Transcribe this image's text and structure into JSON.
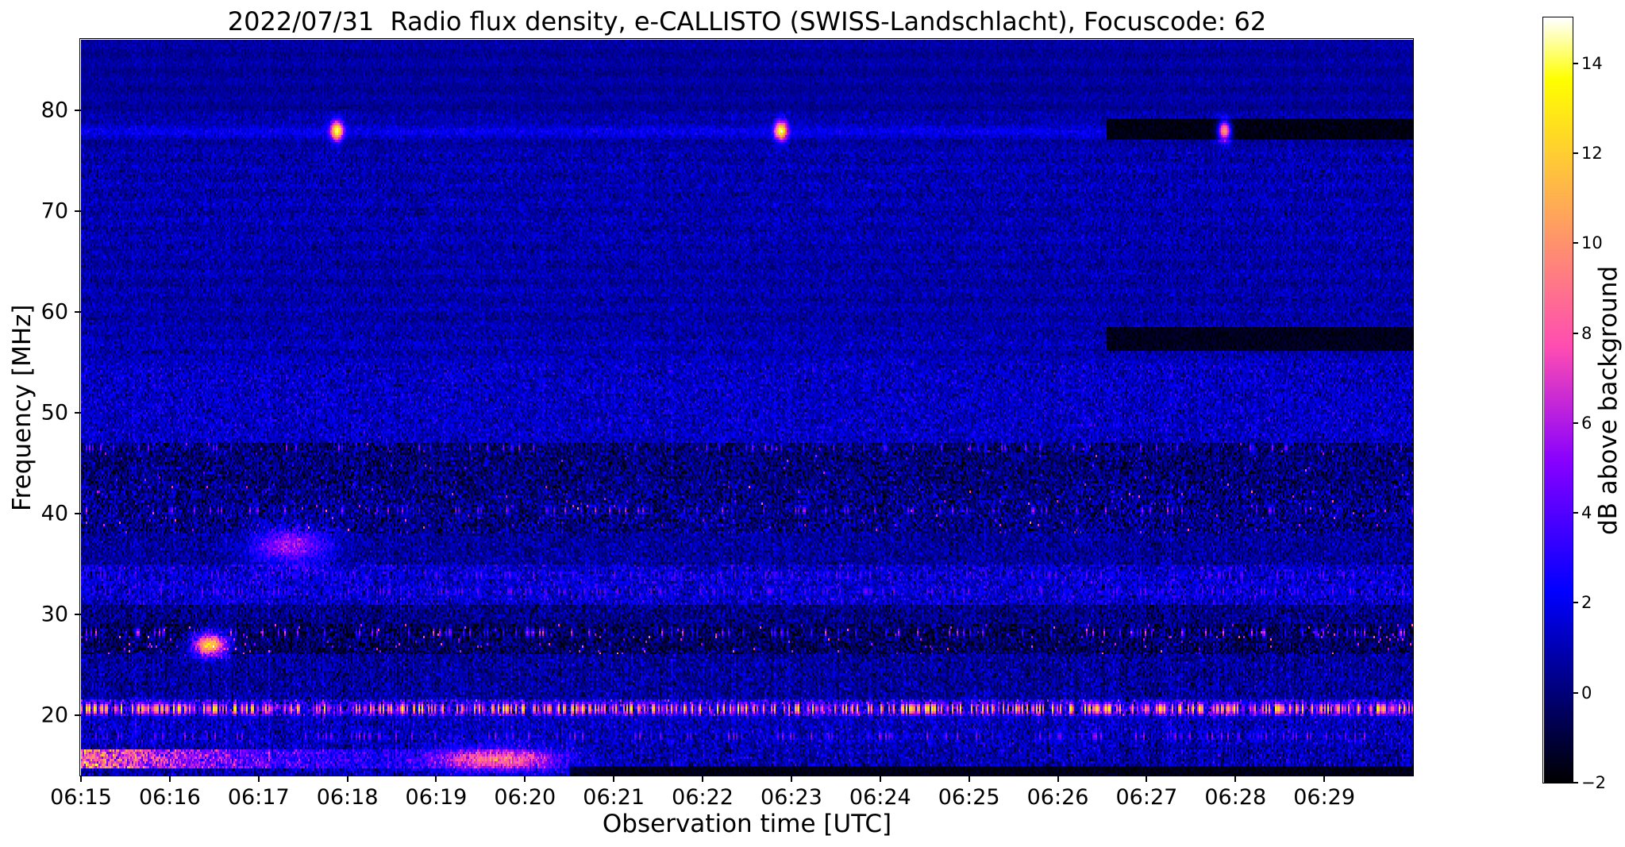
{
  "chart_data": {
    "type": "heatmap",
    "title": "2022/07/31  Radio flux density, e-CALLISTO (SWISS-Landschlacht), Focuscode: 62",
    "xlabel": "Observation time [UTC]",
    "ylabel": "Frequency [MHz]",
    "x_ticks": [
      "06:15",
      "06:16",
      "06:17",
      "06:18",
      "06:19",
      "06:20",
      "06:21",
      "06:22",
      "06:23",
      "06:24",
      "06:25",
      "06:26",
      "06:27",
      "06:28",
      "06:29"
    ],
    "x_start_minutes": 0,
    "x_end_minutes": 15,
    "ylim": [
      14,
      87
    ],
    "y_ticks": [
      20,
      30,
      40,
      50,
      60,
      70,
      80
    ],
    "grid": false,
    "legend": "none",
    "colorbar": {
      "label": "dB above background",
      "vmin": -2,
      "vmax": 15,
      "ticks": [
        -2,
        0,
        2,
        4,
        6,
        8,
        10,
        12,
        14
      ],
      "colormap": "gnuplot2"
    },
    "noise_seed": 20220731,
    "bands": [
      {
        "f0": 14,
        "f1": 17,
        "mean": 0.9,
        "sd": 1.0,
        "streak": 0.8
      },
      {
        "f0": 17,
        "f1": 19.8,
        "mean": 1.1,
        "sd": 1.0,
        "streak": 0.8
      },
      {
        "f0": 19.8,
        "f1": 21.6,
        "mean": 2.2,
        "sd": 1.8,
        "streak": 1.0
      },
      {
        "f0": 21.6,
        "f1": 26,
        "mean": 0.6,
        "sd": 0.9,
        "streak": 0.7
      },
      {
        "f0": 26,
        "f1": 29,
        "mean": -0.4,
        "sd": 1.1,
        "streak": 0.5,
        "spot_p": 0.02,
        "spot_v": 6
      },
      {
        "f0": 29,
        "f1": 31,
        "mean": 0.2,
        "sd": 0.9,
        "streak": 0.5
      },
      {
        "f0": 31,
        "f1": 35,
        "mean": 1.5,
        "sd": 1.1,
        "streak": 0.5
      },
      {
        "f0": 35,
        "f1": 38,
        "mean": 0.6,
        "sd": 0.8,
        "streak": 0.4
      },
      {
        "f0": 38,
        "f1": 43,
        "mean": 0.2,
        "sd": 1.2,
        "streak": 0.4,
        "spot_p": 0.012,
        "spot_v": 5
      },
      {
        "f0": 43,
        "f1": 47,
        "mean": 0.0,
        "sd": 1.1,
        "streak": 0.3,
        "spot_p": 0.008,
        "spot_v": 4
      },
      {
        "f0": 47,
        "f1": 55,
        "mean": 1.3,
        "sd": 0.9,
        "streak": 0.3
      },
      {
        "f0": 55,
        "f1": 58,
        "mean": 1.0,
        "sd": 0.7,
        "streak": 0.2
      },
      {
        "f0": 58,
        "f1": 66,
        "mean": 0.8,
        "sd": 0.6,
        "streak": 0.2
      },
      {
        "f0": 66,
        "f1": 76,
        "mean": 0.9,
        "sd": 0.65,
        "streak": 0.2
      },
      {
        "f0": 76,
        "f1": 80,
        "mean": 0.7,
        "sd": 0.5,
        "streak": 0.2
      },
      {
        "f0": 80,
        "f1": 87,
        "mean": 0.6,
        "sd": 0.35,
        "streak": 0.2
      }
    ],
    "features": [
      {
        "type": "hline",
        "f": 78.0,
        "fw": 0.5,
        "amp": 1.2,
        "note": "faint continuous carrier line at 78 MHz"
      },
      {
        "type": "hband_dark",
        "f0": 77.0,
        "f1": 79.3,
        "t0": 11.55,
        "t1": 15,
        "level": -1.7,
        "note": "black interference band upper right after 06:26.5"
      },
      {
        "type": "hband_dark",
        "f0": 56.2,
        "f1": 58.6,
        "t0": 11.55,
        "t1": 15,
        "level": -1.5,
        "note": "black band near 57 MHz after 06:26.5"
      },
      {
        "type": "hband_dark",
        "f0": 14.0,
        "f1": 15.0,
        "t0": 5.5,
        "t1": 15,
        "level": -1.6,
        "note": "black bottom row after 06:20"
      },
      {
        "type": "spot",
        "t": 2.88,
        "f": 78.0,
        "amp": 12.5,
        "tw": 0.05,
        "fw": 0.7,
        "note": "bright calibration point ~06:17.9 at 78 MHz"
      },
      {
        "type": "spot",
        "t": 7.88,
        "f": 78.0,
        "amp": 12.5,
        "tw": 0.05,
        "fw": 0.7,
        "note": "bright calibration point ~06:22.9 at 78 MHz"
      },
      {
        "type": "spot",
        "t": 12.88,
        "f": 78.0,
        "amp": 12.0,
        "tw": 0.05,
        "fw": 0.7,
        "note": "bright calibration point ~06:27.9 at 78 MHz"
      },
      {
        "type": "spot",
        "t": 1.45,
        "f": 27.0,
        "amp": 13.0,
        "tw": 0.13,
        "fw": 0.8,
        "note": "bright yellow blob ~06:16.4 at 27 MHz"
      },
      {
        "type": "spot",
        "t": 2.35,
        "f": 36.8,
        "amp": 5.0,
        "tw": 0.3,
        "fw": 1.3,
        "note": "pink streak ~06:17.3 near 37 MHz"
      },
      {
        "type": "spot",
        "t": 4.7,
        "f": 15.6,
        "amp": 7.0,
        "tw": 0.5,
        "fw": 0.8,
        "note": "bright segment ~06:19.7 at 15.6 MHz"
      },
      {
        "type": "fade_band",
        "f0": 14.7,
        "f1": 16.5,
        "t0": 0,
        "t1": 5.4,
        "amp": 9.0,
        "decay": 2.0,
        "note": "bright pink band bottom left, fading to 06:20"
      },
      {
        "type": "hline_spikes",
        "f": 20.6,
        "fw": 0.9,
        "p": 0.5,
        "vmin": 4,
        "vmax": 14,
        "note": "dense yellow/white RFI dashes along 20.5 MHz"
      },
      {
        "type": "hline_spikes",
        "f": 17.9,
        "fw": 0.8,
        "p": 0.18,
        "vmin": 2,
        "vmax": 6
      },
      {
        "type": "hline_spikes",
        "f": 28.2,
        "fw": 0.6,
        "p": 0.12,
        "vmin": 3,
        "vmax": 8
      },
      {
        "type": "hline_spikes",
        "f": 32.3,
        "fw": 0.8,
        "p": 0.17,
        "vmin": 2,
        "vmax": 5
      },
      {
        "type": "hline_spikes",
        "f": 33.9,
        "fw": 0.8,
        "p": 0.15,
        "vmin": 2,
        "vmax": 5
      },
      {
        "type": "hline_spikes",
        "f": 40.3,
        "fw": 0.6,
        "p": 0.1,
        "vmin": 3,
        "vmax": 7
      },
      {
        "type": "hline_spikes",
        "f": 46.5,
        "fw": 0.6,
        "p": 0.08,
        "vmin": 3,
        "vmax": 6
      }
    ]
  }
}
